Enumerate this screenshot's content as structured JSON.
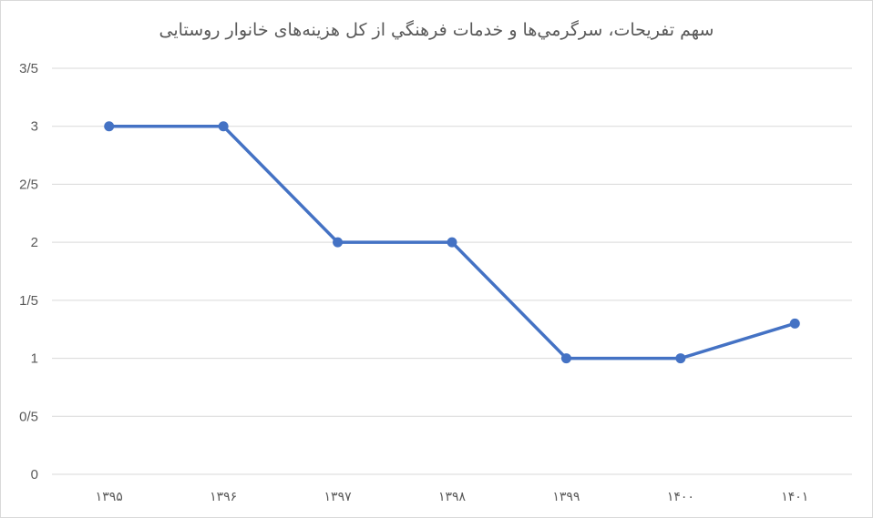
{
  "chart_data": {
    "type": "line",
    "title": "سهم تفريحات، سرگرمي‌ها و خدمات فرهنگي از کل هزينه‌هاى خانوار روستايى",
    "categories": [
      "۱۳۹۵",
      "۱۳۹۶",
      "۱۳۹۷",
      "۱۳۹۸",
      "۱۳۹۹",
      "۱۴۰۰",
      "۱۴۰۱"
    ],
    "series": [
      {
        "values": [
          3,
          3,
          2,
          2,
          1,
          1,
          1.3
        ]
      }
    ],
    "ylim": [
      0,
      3.5
    ],
    "yticks": [
      0,
      0.5,
      1,
      1.5,
      2,
      2.5,
      3,
      3.5
    ],
    "ytick_labels": [
      "0",
      "0/5",
      "1",
      "1/5",
      "2",
      "2/5",
      "3",
      "3/5"
    ],
    "grid": true,
    "colors": {
      "line": "#4472c4",
      "grid": "#d9d9d9",
      "text": "#595959"
    }
  }
}
